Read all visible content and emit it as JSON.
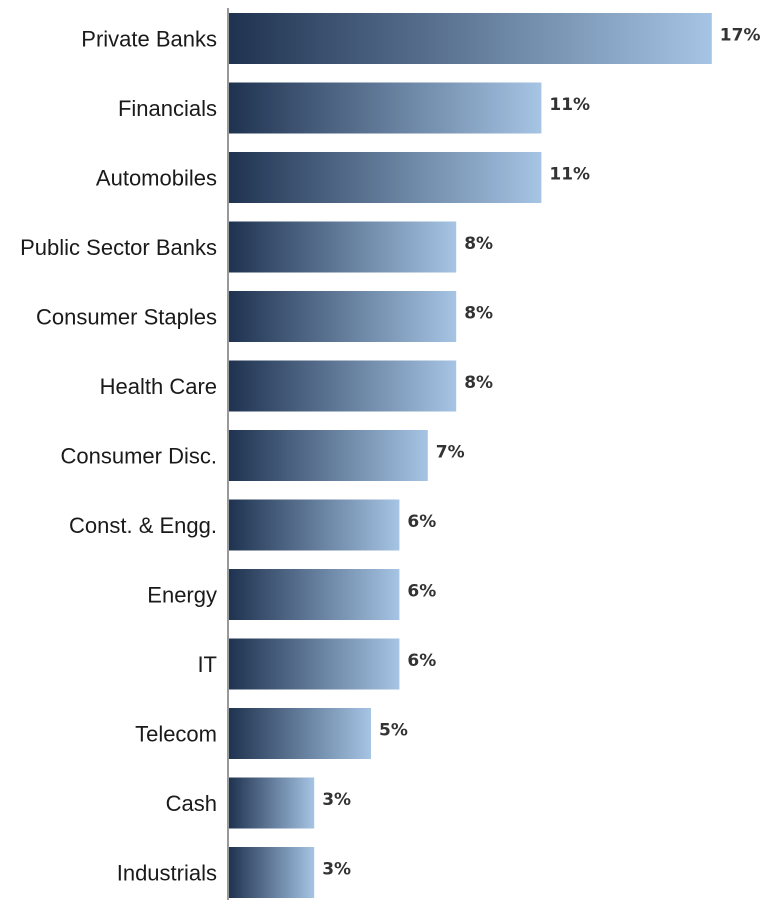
{
  "chart_data": {
    "type": "bar",
    "orientation": "horizontal",
    "categories": [
      "Private Banks",
      "Financials",
      "Automobiles",
      "Public Sector Banks",
      "Consumer Staples",
      "Health Care",
      "Consumer Disc.",
      "Const. & Engg.",
      "Energy",
      "IT",
      "Telecom",
      "Cash",
      "Industrials"
    ],
    "values": [
      17,
      11,
      11,
      8,
      8,
      8,
      7,
      6,
      6,
      6,
      5,
      3,
      3
    ],
    "value_labels": [
      "17%",
      "11%",
      "11%",
      "8%",
      "8%",
      "8%",
      "7%",
      "6%",
      "6%",
      "6%",
      "5%",
      "3%",
      "3%"
    ],
    "title": "",
    "xlabel": "",
    "ylabel": "",
    "grid": false,
    "legend": "none",
    "bar_gradient": [
      "#1f3350",
      "#a6c4e4"
    ],
    "axis_color": "#999999"
  }
}
